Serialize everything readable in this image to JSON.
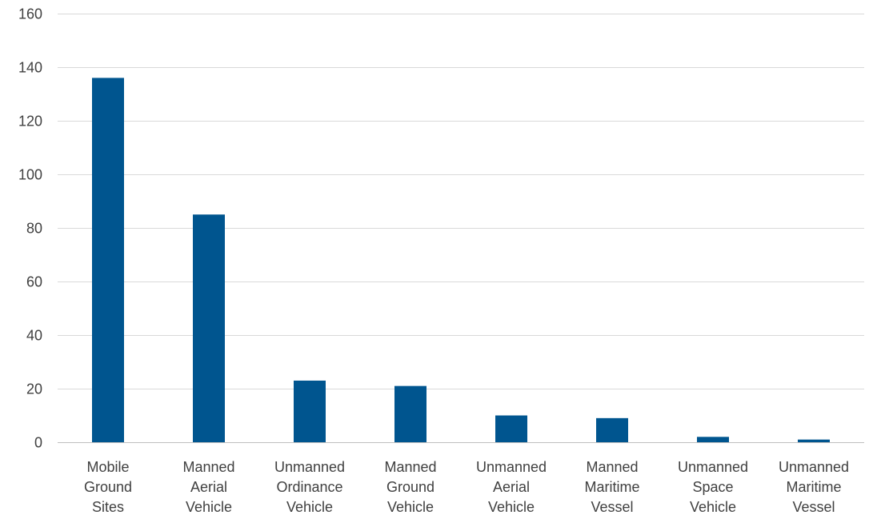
{
  "chart_data": {
    "type": "bar",
    "categories": [
      [
        "Mobile",
        "Ground",
        "Sites"
      ],
      [
        "Manned",
        "Aerial",
        "Vehicle"
      ],
      [
        "Unmanned",
        "Ordinance",
        "Vehicle"
      ],
      [
        "Manned",
        "Ground",
        "Vehicle"
      ],
      [
        "Unmanned",
        "Aerial",
        "Vehicle"
      ],
      [
        "Manned",
        "Maritime",
        "Vessel"
      ],
      [
        "Unmanned",
        "Space",
        "Vehicle"
      ],
      [
        "Unmanned",
        "Maritime",
        "Vessel"
      ]
    ],
    "values": [
      136,
      85,
      23,
      21,
      10,
      9,
      2,
      1
    ],
    "yticks": [
      0,
      20,
      40,
      60,
      80,
      100,
      120,
      140,
      160
    ],
    "ylim": [
      0,
      160
    ],
    "title": "",
    "xlabel": "",
    "ylabel": "",
    "grid": true,
    "legend": "none",
    "bar_color": "#00558f"
  }
}
